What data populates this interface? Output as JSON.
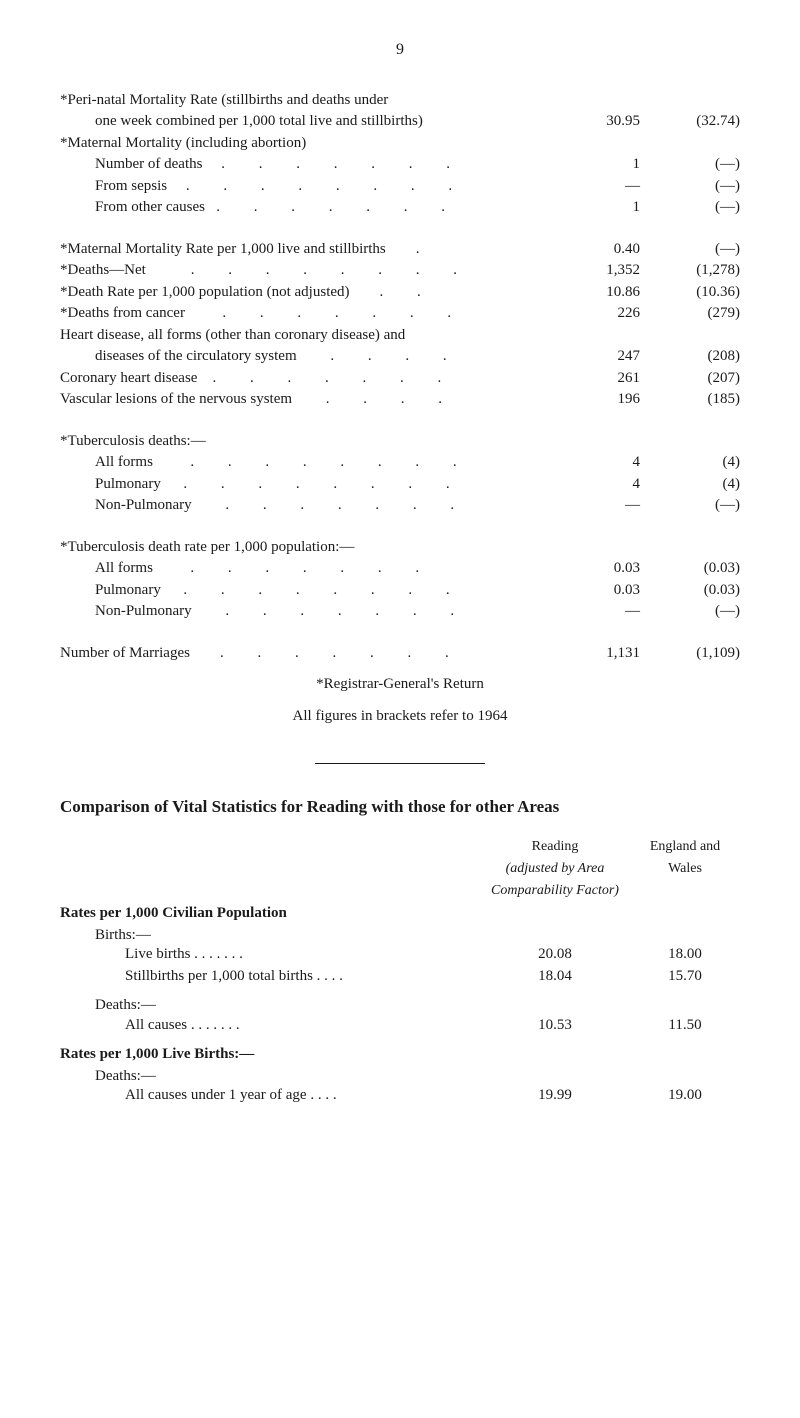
{
  "page_number": "9",
  "stats": [
    {
      "label": "*Peri-natal Mortality Rate (stillbirths and deaths under",
      "v1": "",
      "v2": "",
      "cont": true
    },
    {
      "label": "one week combined per 1,000 total live and stillbirths)",
      "v1": "30.95",
      "v2": "(32.74)",
      "indent": true
    },
    {
      "label": "*Maternal Mortality (including abortion)",
      "v1": "",
      "v2": ""
    },
    {
      "label": "Number of deaths     .         .         .         .         .         .         .",
      "v1": "1",
      "v2": "(—)",
      "indent": true
    },
    {
      "label": "From sepsis     .         .         .         .         .         .         .         .",
      "v1": "—",
      "v2": "(—)",
      "indent": true
    },
    {
      "label": "From other causes   .         .         .         .         .         .         .",
      "v1": "1",
      "v2": "(—)",
      "indent": true
    }
  ],
  "stats2": [
    {
      "label": "*Maternal Mortality Rate per 1,000 live and stillbirths        .",
      "v1": "0.40",
      "v2": "(—)"
    },
    {
      "label": "*Deaths—Net            .         .         .         .         .         .         .         .",
      "v1": "1,352",
      "v2": "(1,278)"
    },
    {
      "label": "*Death Rate per 1,000 population (not adjusted)        .         .",
      "v1": "10.86",
      "v2": "(10.36)"
    },
    {
      "label": "*Deaths from cancer          .         .         .         .         .         .         .",
      "v1": "226",
      "v2": "(279)"
    },
    {
      "label": "Heart disease, all forms (other than coronary disease) and",
      "v1": "",
      "v2": "",
      "cont": true
    },
    {
      "label": "diseases of the circulatory system         .         .         .         .",
      "v1": "247",
      "v2": "(208)",
      "indent": true
    },
    {
      "label": "Coronary heart disease    .         .         .         .         .         .         .",
      "v1": "261",
      "v2": "(207)"
    },
    {
      "label": "Vascular lesions of the nervous system         .         .         .         .",
      "v1": "196",
      "v2": "(185)"
    }
  ],
  "tb_deaths_title": "*Tuberculosis deaths:—",
  "tb_deaths": [
    {
      "label": "All forms          .         .         .         .         .         .         .         .",
      "v1": "4",
      "v2": "(4)",
      "indent": true
    },
    {
      "label": "Pulmonary      .         .         .         .         .         .         .         .",
      "v1": "4",
      "v2": "(4)",
      "indent": true
    },
    {
      "label": "Non-Pulmonary         .         .         .         .         .         .         .",
      "v1": "—",
      "v2": "(—)",
      "indent": true
    }
  ],
  "tb_rate_title": "*Tuberculosis death rate per 1,000 population:—",
  "tb_rate": [
    {
      "label": "All forms          .         .         .         .         .         .         .",
      "v1": "0.03",
      "v2": "(0.03)",
      "indent": true
    },
    {
      "label": "Pulmonary      .         .         .         .         .         .         .         .",
      "v1": "0.03",
      "v2": "(0.03)",
      "indent": true
    },
    {
      "label": "Non-Pulmonary         .         .         .         .         .         .         .",
      "v1": "—",
      "v2": "(—)",
      "indent": true
    }
  ],
  "marriages": {
    "label": "Number of Marriages        .         .         .         .         .         .         .",
    "v1": "1,131",
    "v2": "(1,109)"
  },
  "registrar_note": "*Registrar-General's Return",
  "brackets_note": "All figures in brackets refer to 1964",
  "comparison_heading": "Comparison of Vital Statistics for Reading with those for other Areas",
  "col_headers": {
    "reading1": "Reading",
    "reading2": "(adjusted by Area",
    "reading3": "Comparability Factor)",
    "england1": "England and",
    "england2": "Wales"
  },
  "rates_pop_title": "Rates per 1,000 Civilian Population",
  "births_title": "Births:—",
  "births": [
    {
      "label": "Live births                      .       .       .       .       .       .       .",
      "v1": "20.08",
      "v2": "18.00"
    },
    {
      "label": "Stillbirths per 1,000 total births           .       .       .       .",
      "v1": "18.04",
      "v2": "15.70"
    }
  ],
  "deaths_title": "Deaths:—",
  "deaths": [
    {
      "label": "All causes                       .       .       .       .       .       .       .",
      "v1": "10.53",
      "v2": "11.50"
    }
  ],
  "rates_births_title": "Rates per 1,000 Live Births:—",
  "deaths2_title": "Deaths:—",
  "deaths2": [
    {
      "label": "All causes under 1 year of age               .       .       .       .",
      "v1": "19.99",
      "v2": "19.00"
    }
  ]
}
